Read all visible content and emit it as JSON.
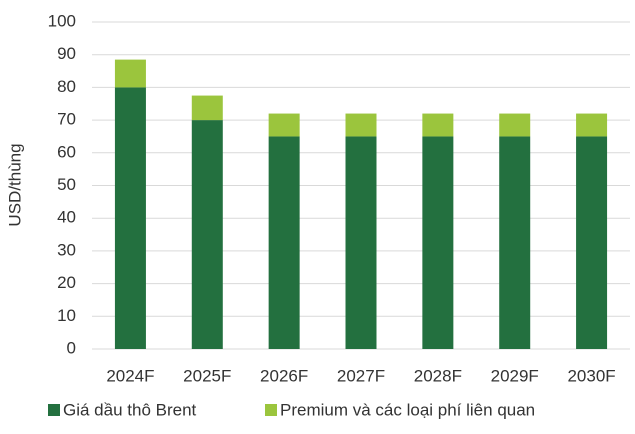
{
  "chart_data": {
    "type": "stacked_bar",
    "y_label": "USD/thùng",
    "categories": [
      "2024F",
      "2025F",
      "2026F",
      "2027F",
      "2028F",
      "2029F",
      "2030F"
    ],
    "series": [
      {
        "name": "Giá dầu thô Brent",
        "color": "#23703f",
        "values": [
          80,
          70,
          65,
          65,
          65,
          65,
          65
        ]
      },
      {
        "name": "Premium và các loại phí liên quan",
        "color": "#9bc53d",
        "values": [
          8.5,
          7.5,
          7,
          7,
          7,
          7,
          7
        ]
      }
    ],
    "ylim": [
      0,
      100
    ],
    "yticks": [
      0,
      10,
      20,
      30,
      40,
      50,
      60,
      70,
      80,
      90,
      100
    ],
    "grid": true,
    "legend": "bottom"
  }
}
